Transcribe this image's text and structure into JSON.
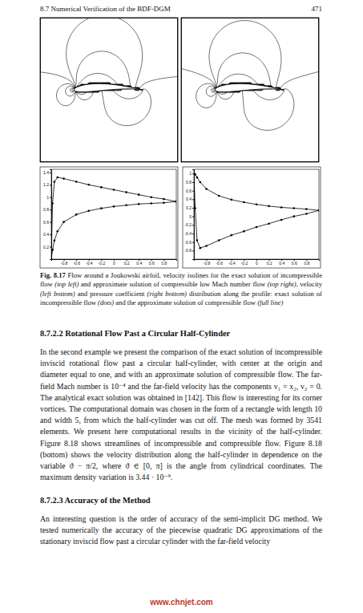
{
  "header": {
    "section": "8.7 Numerical Verification of the BDF-DGM",
    "page": "471"
  },
  "chart_data": [
    {
      "type": "line",
      "x": [
        -1,
        -0.98,
        -0.95,
        -0.9,
        -0.8,
        -0.6,
        -0.4,
        -0.2,
        0,
        0.2,
        0.4,
        0.6,
        0.8,
        1
      ],
      "xlim": [
        -1,
        1
      ],
      "xticks": [
        -0.8,
        -0.6,
        -0.4,
        -0.2,
        0,
        0.2,
        0.4,
        0.6,
        0.8
      ],
      "ylim": [
        0,
        1.45
      ],
      "yticks": [
        0.2,
        0.4,
        0.6,
        0.8,
        1,
        1.2,
        1.4
      ],
      "series": [
        {
          "values": [
            0,
            0.9,
            1.25,
            1.32,
            1.3,
            1.25,
            1.2,
            1.16,
            1.12,
            1.08,
            1.04,
            1.0,
            0.97,
            0.93
          ],
          "marker": "dot",
          "line_style": "none",
          "color": "#000000"
        },
        {
          "values": [
            0,
            0.15,
            0.3,
            0.45,
            0.6,
            0.72,
            0.78,
            0.82,
            0.85,
            0.87,
            0.89,
            0.9,
            0.91,
            0.93
          ],
          "marker": "dot",
          "line_style": "none",
          "color": "#000000"
        },
        {
          "values": [
            0,
            0.9,
            1.25,
            1.32,
            1.3,
            1.25,
            1.2,
            1.16,
            1.12,
            1.08,
            1.04,
            1.0,
            0.97,
            0.93
          ],
          "marker": "none",
          "line_style": "solid",
          "color": "#000000"
        },
        {
          "values": [
            0,
            0.15,
            0.3,
            0.45,
            0.6,
            0.72,
            0.78,
            0.82,
            0.85,
            0.87,
            0.89,
            0.9,
            0.91,
            0.93
          ],
          "marker": "none",
          "line_style": "solid",
          "color": "#000000"
        }
      ]
    },
    {
      "type": "line",
      "x": [
        -1,
        -0.98,
        -0.95,
        -0.9,
        -0.8,
        -0.6,
        -0.4,
        -0.2,
        0,
        0.2,
        0.4,
        0.6,
        0.8,
        1
      ],
      "xlim": [
        -1,
        1
      ],
      "xticks": [
        -0.8,
        -0.6,
        -0.4,
        -0.2,
        0,
        0.2,
        0.4,
        0.6,
        0.8
      ],
      "ylim": [
        -1,
        1.1
      ],
      "yticks": [
        -0.8,
        -0.6,
        -0.4,
        -0.2,
        0,
        0.2,
        0.4,
        0.6,
        0.8,
        1
      ],
      "series": [
        {
          "values": [
            1,
            0.19,
            -0.56,
            -0.74,
            -0.69,
            -0.56,
            -0.44,
            -0.35,
            -0.25,
            -0.17,
            -0.08,
            0,
            0.06,
            0.14
          ],
          "marker": "dot",
          "line_style": "none",
          "color": "#000000"
        },
        {
          "values": [
            1,
            0.98,
            0.91,
            0.8,
            0.64,
            0.48,
            0.39,
            0.33,
            0.28,
            0.24,
            0.21,
            0.19,
            0.17,
            0.14
          ],
          "marker": "dot",
          "line_style": "none",
          "color": "#000000"
        },
        {
          "values": [
            1,
            0.19,
            -0.56,
            -0.74,
            -0.69,
            -0.56,
            -0.44,
            -0.35,
            -0.25,
            -0.17,
            -0.08,
            0,
            0.06,
            0.14
          ],
          "marker": "none",
          "line_style": "solid",
          "color": "#000000"
        },
        {
          "values": [
            1,
            0.98,
            0.91,
            0.8,
            0.64,
            0.48,
            0.39,
            0.33,
            0.28,
            0.24,
            0.21,
            0.19,
            0.17,
            0.14
          ],
          "marker": "none",
          "line_style": "solid",
          "color": "#000000"
        }
      ]
    }
  ],
  "caption": {
    "label": "Fig. 8.17",
    "parts": [
      {
        "text": " Flow around a Joukowski airfoil, velocity isolines for the exact solution of incompressible flow ",
        "italic": false
      },
      {
        "text": "(top left)",
        "italic": true
      },
      {
        "text": " and approximate solution of compressible low Mach number flow ",
        "italic": false
      },
      {
        "text": "(top right)",
        "italic": true
      },
      {
        "text": ", velocity ",
        "italic": false
      },
      {
        "text": "(left bottom)",
        "italic": true
      },
      {
        "text": " and pressure coefficient ",
        "italic": false
      },
      {
        "text": "(right bottom)",
        "italic": true
      },
      {
        "text": " distribution along the profile: exact solution of incompressible flow ",
        "italic": false
      },
      {
        "text": "(dots)",
        "italic": true
      },
      {
        "text": " and the approximate solution of compressible flow ",
        "italic": false
      },
      {
        "text": "(full line)",
        "italic": true
      }
    ]
  },
  "sections": [
    {
      "heading": "8.7.2.2 Rotational Flow Past a Circular Half-Cylinder",
      "text": "In the second example we present the comparison of the exact solution of incompressible inviscid rotational flow past a circular half-cylinder, with center at the origin and diameter equal to one, and with an approximate solution of compressible flow. The far-field Mach number is 10⁻⁴ and the far-field velocity has the components v₁ = x₂, v₂ = 0. The analytical exact solution was obtained in [142]. This flow is interesting for its corner vortices. The computational domain was chosen in the form of a rectangle with length 10 and width 5, from which the half-cylinder was cut off. The mesh was formed by 3541 elements. We present here computational results in the vicinity of the half-cylinder. Figure 8.18 shows streamlines of incompressible and compressible flow. Figure 8.18 (bottom) shows the velocity distribution along the half-cylinder in dependence on the variable ϑ − π/2, where ϑ ∈ [0, π] is the angle from cylindrical coordinates. The maximum density variation is 3.44 · 10⁻⁹."
    },
    {
      "heading": "8.7.2.3 Accuracy of the Method",
      "text": "An interesting question is the order of accuracy of the semi-implicit DG method. We tested numerically the accuracy of the piecewise quadratic DG approximations of the stationary inviscid flow past a circular cylinder with the far-field velocity"
    }
  ],
  "watermark": "www.chnjet.com"
}
